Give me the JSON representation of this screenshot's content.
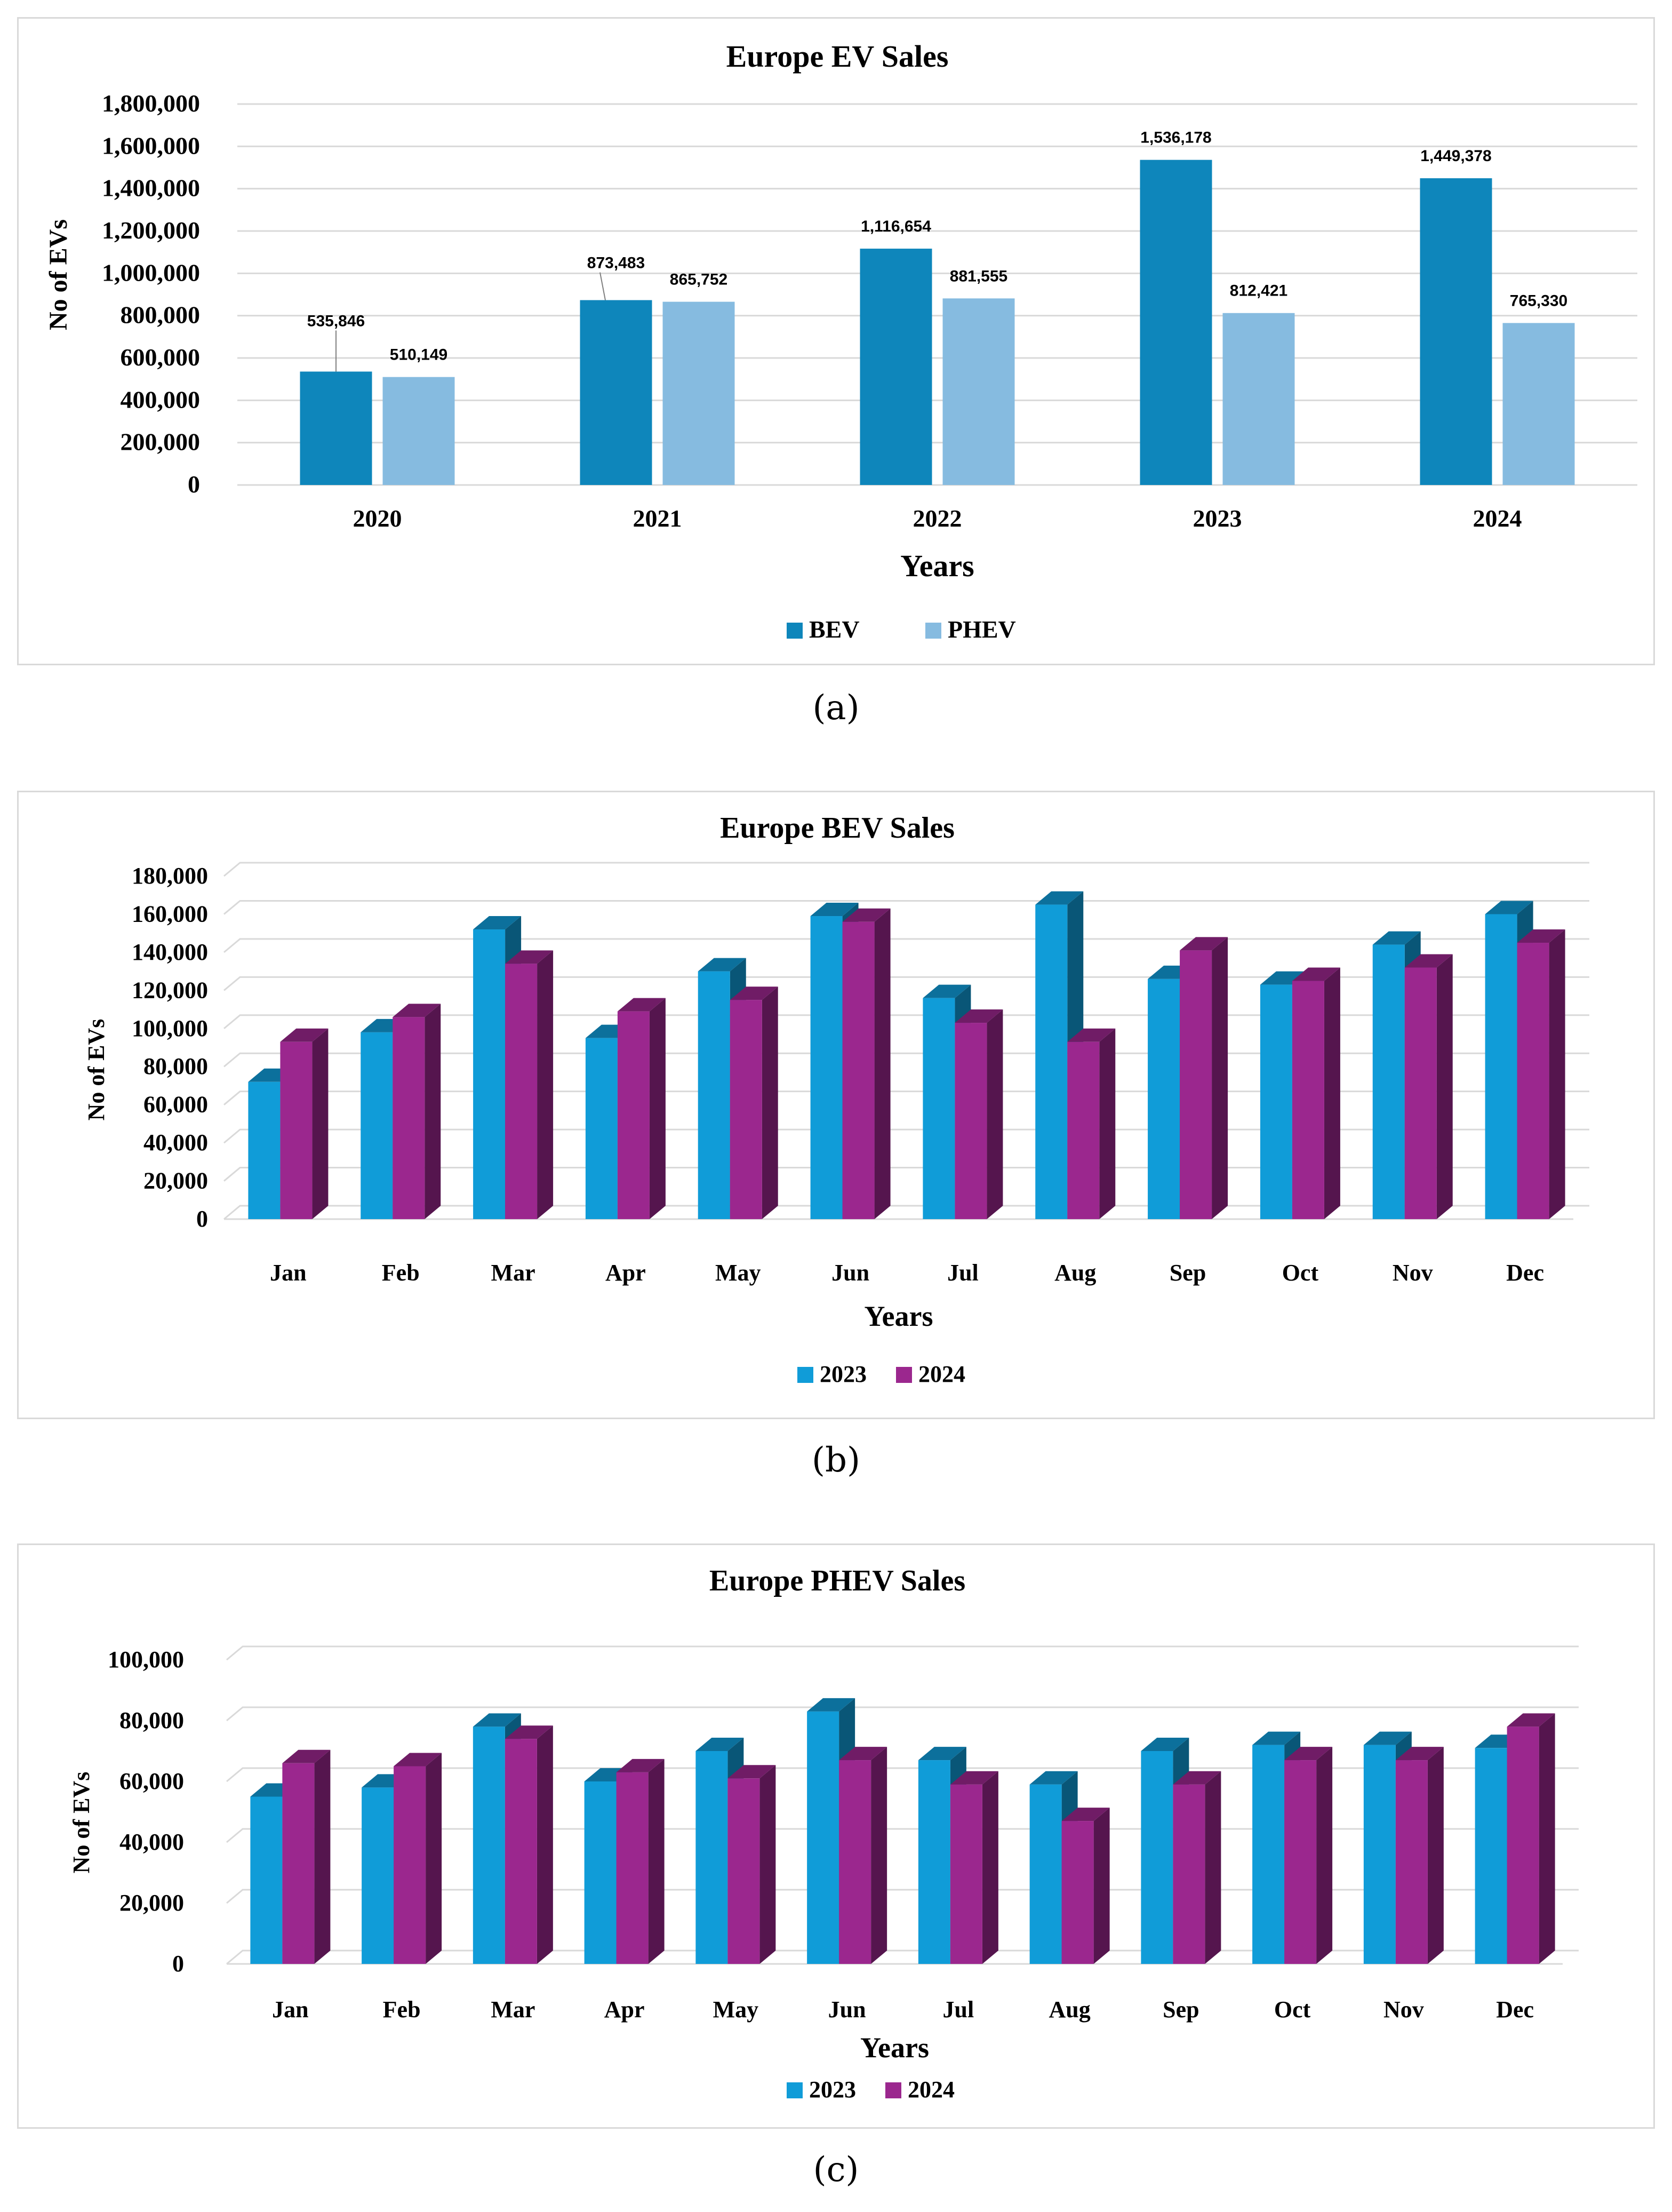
{
  "captions": [
    "(a)",
    "(b)",
    "(c)"
  ],
  "chart_data": [
    {
      "type": "bar",
      "title": "Europe EV Sales",
      "xlabel": "Years",
      "ylabel": "No of EVs",
      "ylim": [
        0,
        1800000
      ],
      "yticks": [
        "0",
        "200,000",
        "400,000",
        "600,000",
        "800,000",
        "1,000,000",
        "1,200,000",
        "1,400,000",
        "1,600,000",
        "1,800,000"
      ],
      "categories": [
        "2020",
        "2021",
        "2022",
        "2023",
        "2024"
      ],
      "series": [
        {
          "name": "BEV",
          "color": "#0e86bb",
          "values": [
            535846,
            873483,
            1116654,
            1536178,
            1449378
          ],
          "labels": [
            "535,846",
            "873,483",
            "1,116,654",
            "1,536,178",
            "1,449,378"
          ]
        },
        {
          "name": "PHEV",
          "color": "#86bbe0",
          "values": [
            510149,
            865752,
            881555,
            812421,
            765330
          ],
          "labels": [
            "510,149",
            "865,752",
            "881,555",
            "812,421",
            "765,330"
          ]
        }
      ],
      "grid": true,
      "legend": "bottom"
    },
    {
      "type": "bar",
      "title": "Europe BEV Sales",
      "xlabel": "Years",
      "ylabel": "No of  EVs",
      "ylim": [
        0,
        180000
      ],
      "yticks": [
        "0",
        "20,000",
        "40,000",
        "60,000",
        "80,000",
        "100,000",
        "120,000",
        "140,000",
        "160,000",
        "180,000"
      ],
      "categories": [
        "Jan",
        "Feb",
        "Mar",
        "Apr",
        "May",
        "Jun",
        "Jul",
        "Aug",
        "Sep",
        "Oct",
        "Nov",
        "Dec"
      ],
      "series": [
        {
          "name": "2023",
          "color": "#109cd8",
          "values": [
            72000,
            98000,
            152000,
            95000,
            130000,
            159000,
            116000,
            165000,
            126000,
            123000,
            144000,
            160000
          ]
        },
        {
          "name": "2024",
          "color": "#9b278e",
          "values": [
            93000,
            106000,
            134000,
            109000,
            115000,
            156000,
            103000,
            93000,
            141000,
            125000,
            132000,
            145000
          ]
        }
      ],
      "grid": true,
      "legend": "bottom"
    },
    {
      "type": "bar",
      "title": "Europe PHEV Sales",
      "xlabel": "Years",
      "ylabel": "No of  EVs",
      "ylim": [
        0,
        100000
      ],
      "yticks": [
        "0",
        "20,000",
        "40,000",
        "60,000",
        "80,000",
        "100,000"
      ],
      "categories": [
        "Jan",
        "Feb",
        "Mar",
        "Apr",
        "May",
        "Jun",
        "Jul",
        "Aug",
        "Sep",
        "Oct",
        "Nov",
        "Dec"
      ],
      "series": [
        {
          "name": "2023",
          "color": "#109cd8",
          "values": [
            55000,
            58000,
            78000,
            60000,
            70000,
            83000,
            67000,
            59000,
            70000,
            72000,
            72000,
            71000
          ]
        },
        {
          "name": "2024",
          "color": "#9b278e",
          "values": [
            66000,
            65000,
            74000,
            63000,
            61000,
            67000,
            59000,
            47000,
            59000,
            67000,
            67000,
            78000
          ]
        }
      ],
      "grid": true,
      "legend": "bottom"
    }
  ]
}
